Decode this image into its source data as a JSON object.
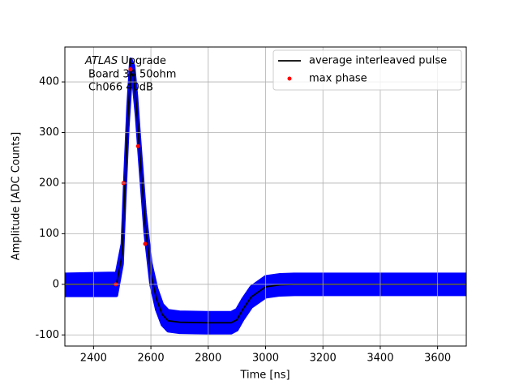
{
  "chart_data": {
    "type": "line",
    "xlabel": "Time [ns]",
    "ylabel": "Amplitude [ADC Counts]",
    "annotation": {
      "italic": "ATLAS",
      "text": "Upgrade",
      "lines": [
        "Board 34 50ohm",
        "Ch066 40dB"
      ]
    },
    "xlim": [
      2300,
      3700
    ],
    "xticks": [
      2400,
      2600,
      2800,
      3000,
      3200,
      3400,
      3600
    ],
    "ylim": [
      -122,
      469
    ],
    "yticks": [
      -100,
      0,
      100,
      200,
      300,
      400
    ],
    "grid": true,
    "legend": "upper right",
    "band": {
      "color": "#0000ff",
      "x": [
        2300,
        2480,
        2500,
        2510,
        2520,
        2530,
        2540,
        2550,
        2560,
        2580,
        2600,
        2620,
        2640,
        2660,
        2700,
        2800,
        2880,
        2900,
        2920,
        2950,
        3000,
        3050,
        3100,
        3700
      ],
      "low": [
        -22,
        -22,
        40,
        180,
        310,
        400,
        390,
        330,
        250,
        100,
        0,
        -50,
        -80,
        -92,
        -95,
        -96,
        -96,
        -90,
        -70,
        -45,
        -25,
        -21,
        -20,
        -20
      ],
      "high": [
        20,
        22,
        80,
        222,
        352,
        445,
        432,
        372,
        292,
        142,
        42,
        -8,
        -40,
        -52,
        -55,
        -56,
        -56,
        -50,
        -30,
        -5,
        15,
        19,
        20,
        20
      ]
    },
    "series": [
      {
        "name": "average interleaved pulse",
        "kind": "line",
        "color": "#000000",
        "x": [
          2300,
          2480,
          2500,
          2510,
          2520,
          2530,
          2540,
          2550,
          2560,
          2580,
          2600,
          2620,
          2640,
          2660,
          2700,
          2800,
          2880,
          2900,
          2920,
          2950,
          3000,
          3050,
          3100,
          3700
        ],
        "values": [
          0,
          0,
          60,
          200,
          330,
          420,
          410,
          350,
          270,
          120,
          20,
          -30,
          -60,
          -72,
          -75,
          -76,
          -76,
          -70,
          -50,
          -25,
          -5,
          -1,
          0,
          0
        ]
      },
      {
        "name": "max phase",
        "kind": "scatter",
        "color": "#ff0000",
        "x": [
          2478,
          2504,
          2529,
          2555,
          2580
        ],
        "values": [
          0,
          200,
          425,
          273,
          80
        ]
      }
    ]
  }
}
